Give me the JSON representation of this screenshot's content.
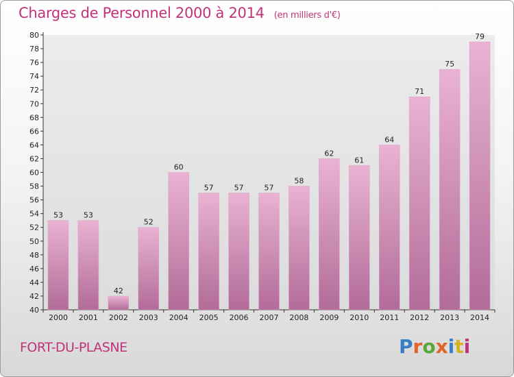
{
  "header": {
    "title": "Charges de Personnel 2000 à 2014",
    "subtitle": "(en milliers d'€)"
  },
  "footer": {
    "place": "FORT-DU-PLASNE",
    "logo": "Proxiti"
  },
  "colors": {
    "bar_light": "#e8aed0",
    "bar_dark": "#b8709e",
    "accent": "#c0337a"
  },
  "chart_data": {
    "type": "bar",
    "title": "Charges de Personnel 2000 à 2014",
    "subtitle": "(en milliers d'€)",
    "xlabel": "",
    "ylabel": "",
    "ylim": [
      40,
      80
    ],
    "ytick_step": 2,
    "grid": false,
    "categories": [
      "2000",
      "2001",
      "2002",
      "2003",
      "2004",
      "2005",
      "2006",
      "2007",
      "2008",
      "2009",
      "2010",
      "2011",
      "2012",
      "2013",
      "2014"
    ],
    "values": [
      53,
      53,
      42,
      52,
      60,
      57,
      57,
      57,
      58,
      62,
      61,
      64,
      71,
      75,
      79
    ]
  }
}
